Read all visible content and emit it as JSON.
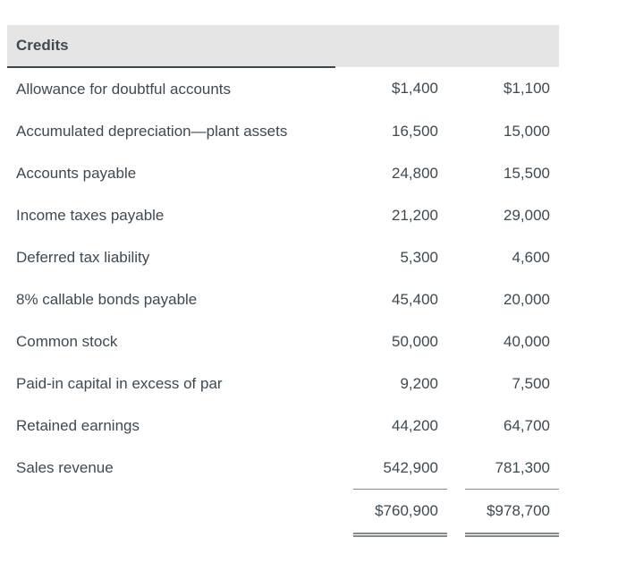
{
  "table": {
    "header": {
      "title": "Credits"
    },
    "rows": [
      {
        "label": "Allowance for doubtful accounts",
        "col1": "$1,400",
        "col2": "$1,100"
      },
      {
        "label": "Accumulated depreciation—plant assets",
        "col1": "16,500",
        "col2": "15,000"
      },
      {
        "label": "Accounts payable",
        "col1": "24,800",
        "col2": "15,500"
      },
      {
        "label": "Income taxes payable",
        "col1": "21,200",
        "col2": "29,000"
      },
      {
        "label": "Deferred tax liability",
        "col1": "5,300",
        "col2": "4,600"
      },
      {
        "label": "8% callable bonds payable",
        "col1": "45,400",
        "col2": "20,000"
      },
      {
        "label": "Common stock",
        "col1": "50,000",
        "col2": "40,000"
      },
      {
        "label": "Paid-in capital in excess of par",
        "col1": "9,200",
        "col2": "7,500"
      },
      {
        "label": "Retained earnings",
        "col1": "44,200",
        "col2": "64,700"
      },
      {
        "label": "Sales revenue",
        "col1": "542,900",
        "col2": "781,300"
      }
    ],
    "totals": {
      "col1": "$760,900",
      "col2": "$978,700"
    }
  },
  "colors": {
    "text": "#3d4a53",
    "header_bg": "#e5e5e5",
    "header_rule": "#3a474f",
    "total_rule": "#83898f"
  }
}
